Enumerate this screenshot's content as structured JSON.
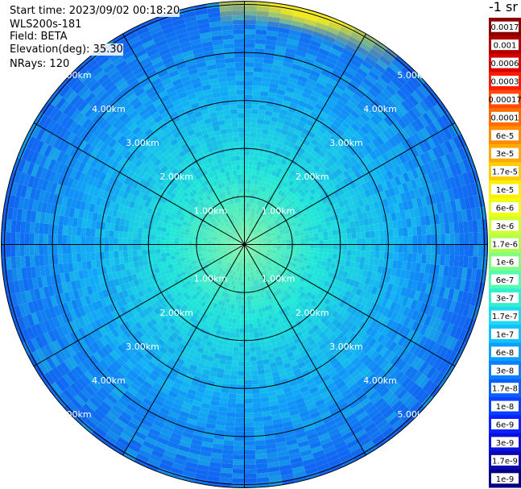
{
  "header": {
    "start_time": "Start time: 2023/09/02 00:18:20",
    "instrument": "WLS200s-181",
    "field": "Field: BETA",
    "elevation": "Elevation(deg): 35.30",
    "nrays": "NRays: 120"
  },
  "colorbar": {
    "unit_label": "-1 sr",
    "labels": [
      "0.0017",
      "0.001",
      "0.0006",
      "0.0003",
      "0.00017",
      "0.0001",
      "6e-5",
      "3e-5",
      "1.7e-5",
      "1e-5",
      "6e-6",
      "3e-6",
      "1.7e-6",
      "1e-6",
      "6e-7",
      "3e-7",
      "1.7e-7",
      "1e-7",
      "6e-8",
      "3e-8",
      "1.7e-8",
      "1e-8",
      "6e-9",
      "3e-9",
      "1.7e-9",
      "1e-9"
    ],
    "colors": [
      "#8b0000",
      "#b00000",
      "#d80000",
      "#ff1a00",
      "#ff4a00",
      "#ff6c00",
      "#ff8c00",
      "#ffaa00",
      "#ffcc00",
      "#ffee00",
      "#f0ff10",
      "#d0ff30",
      "#b0ff50",
      "#80ff80",
      "#50ffb0",
      "#30f0d0",
      "#20d8f0",
      "#10c0ff",
      "#0aa0ff",
      "#0a80ff",
      "#0a60ff",
      "#0a40ff",
      "#0a20ff",
      "#0a10e0",
      "#0a08b0",
      "#000080"
    ]
  },
  "chart_data": {
    "type": "heatmap",
    "projection": "polar (PPI scan)",
    "range_labels_km": [
      "1.00km",
      "2.00km",
      "3.00km",
      "4.00km",
      "5.00km"
    ],
    "range_rings_km": [
      1,
      2,
      3,
      4,
      5
    ],
    "max_range_km": 5.0,
    "spoke_count": 12,
    "background_colors": {
      "near": "#80f7a0",
      "mid": "#20e8d8",
      "far": "#10a8f8",
      "edge": "#1060f0",
      "hotspot": "#f0e820"
    }
  }
}
